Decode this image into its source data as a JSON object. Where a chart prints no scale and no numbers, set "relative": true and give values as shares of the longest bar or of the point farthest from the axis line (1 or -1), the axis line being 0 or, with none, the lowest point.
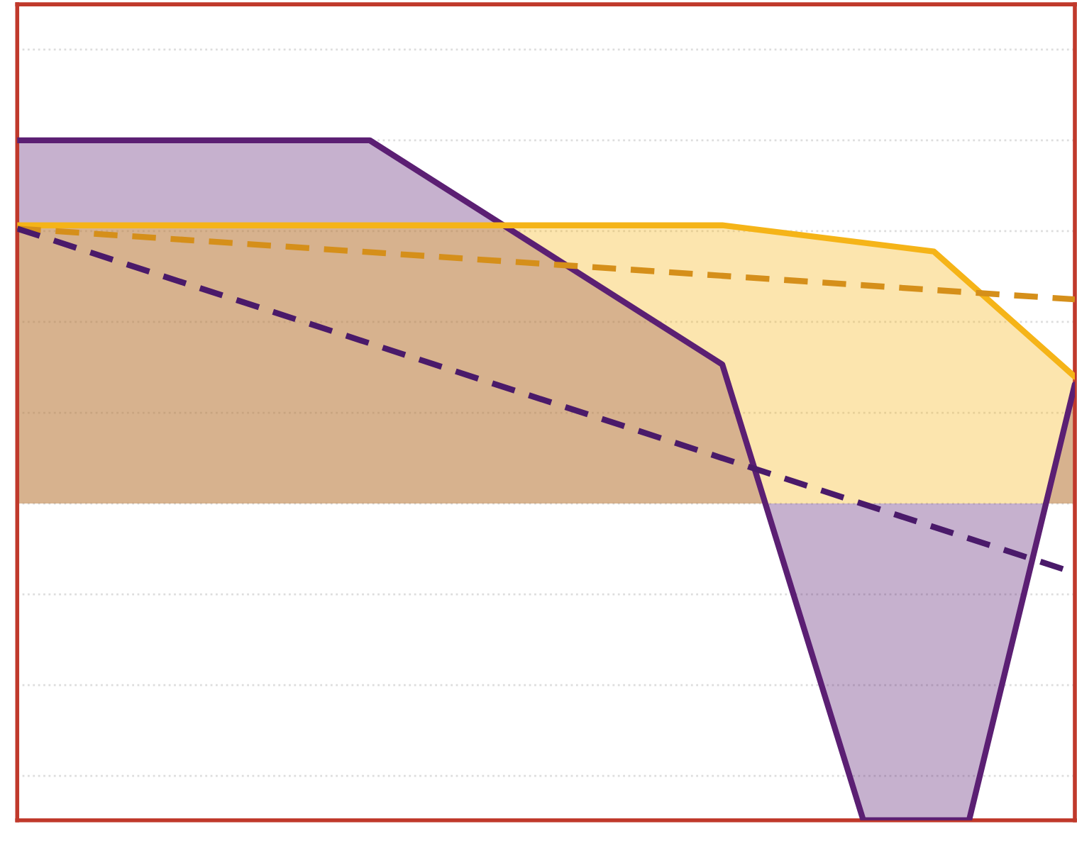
{
  "chart_data": {
    "type": "area",
    "relative": true,
    "grid": "y",
    "categories": [
      null,
      null,
      null,
      null,
      null,
      null,
      null,
      null,
      null,
      null,
      null,
      null,
      null,
      null,
      null,
      null,
      null,
      null,
      null,
      null,
      null,
      null,
      null,
      null,
      null,
      null,
      null,
      null,
      null,
      null,
      null
    ],
    "series": [
      {
        "color": "#5b1f73",
        "values": [
          1.0,
          null,
          null,
          null,
          null,
          null,
          null,
          null,
          null,
          null,
          1.0,
          null,
          null,
          null,
          null,
          null,
          null,
          null,
          null,
          null,
          0.383,
          null,
          null,
          null,
          -0.872,
          null,
          null,
          -0.872,
          null,
          null,
          0.328
        ]
      },
      {
        "color": "#f5b418",
        "values": [
          0.766,
          null,
          null,
          null,
          null,
          null,
          null,
          null,
          null,
          null,
          null,
          null,
          null,
          null,
          null,
          null,
          null,
          null,
          null,
          null,
          0.766,
          null,
          null,
          null,
          null,
          null,
          0.694,
          null,
          null,
          null,
          0.349
        ]
      },
      {
        "type": "line",
        "color": "#d58f1a",
        "line_style": "dashed",
        "values": [
          0.757,
          null,
          null,
          null,
          null,
          null,
          null,
          null,
          null,
          null,
          null,
          null,
          null,
          null,
          null,
          null,
          null,
          null,
          null,
          null,
          null,
          null,
          null,
          null,
          null,
          null,
          null,
          null,
          null,
          null,
          0.562
        ]
      },
      {
        "type": "line",
        "color": "#4a1a6a",
        "line_style": "dashed",
        "values": [
          0.757,
          null,
          null,
          null,
          null,
          null,
          null,
          null,
          null,
          null,
          null,
          null,
          null,
          null,
          null,
          null,
          null,
          null,
          null,
          null,
          null,
          null,
          null,
          null,
          null,
          null,
          null,
          null,
          null,
          null,
          -0.191
        ]
      }
    ]
  }
}
